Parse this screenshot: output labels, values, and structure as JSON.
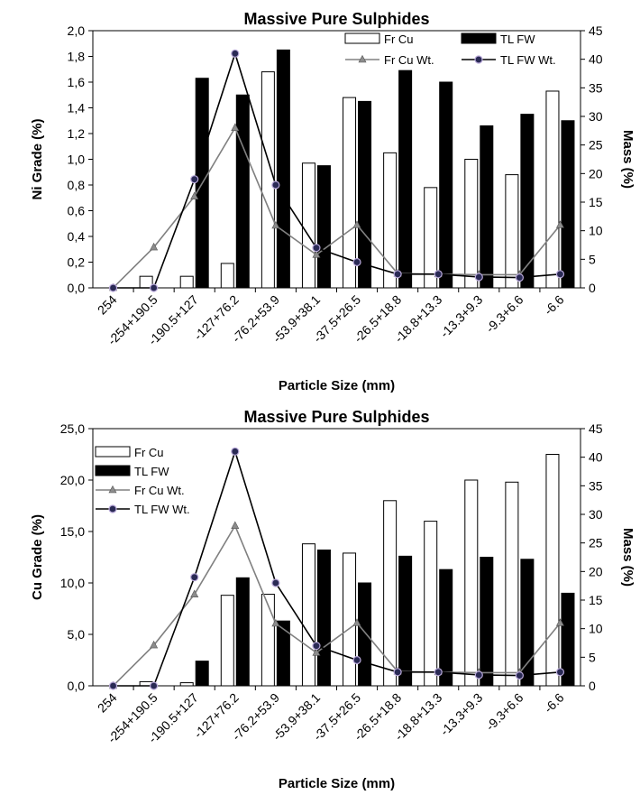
{
  "chart_data": [
    {
      "type": "bar",
      "title": "Massive Pure Sulphides",
      "xlabel": "Particle Size (mm)",
      "ylabel": "Ni Grade (%)",
      "y2label": "Mass (%)",
      "ylim": [
        0,
        2.0
      ],
      "yticks": [
        "0,0",
        "0,2",
        "0,4",
        "0,6",
        "0,8",
        "1,0",
        "1,2",
        "1,4",
        "1,6",
        "1,8",
        "2,0"
      ],
      "y2lim": [
        0,
        45
      ],
      "y2ticks": [
        "0",
        "5",
        "10",
        "15",
        "20",
        "25",
        "30",
        "35",
        "40",
        "45"
      ],
      "legend_position": "top-right",
      "legend_columns": 2,
      "categories": [
        "254",
        "-254+190.5",
        "-190.5+127",
        "-127+76.2",
        "-76.2+53.9",
        "-53.9+38.1",
        "-37.5+26.5",
        "-26.5+18.8",
        "-18.8+13.3",
        "-13.3+9.3",
        "-9.3+6.6",
        "-6.6"
      ],
      "series": [
        {
          "name": "Fr Cu",
          "kind": "bar",
          "axis": "left",
          "fill": "#ffffff",
          "values": [
            0,
            0.09,
            0.09,
            0.19,
            1.68,
            0.97,
            1.48,
            1.05,
            0.78,
            1.0,
            0.88,
            1.53
          ]
        },
        {
          "name": "TL FW",
          "kind": "bar",
          "axis": "left",
          "fill": "#000000",
          "values": [
            0,
            0,
            1.63,
            1.5,
            1.85,
            0.95,
            1.45,
            1.69,
            1.6,
            1.26,
            1.35,
            1.3
          ]
        },
        {
          "name": "Fr Cu Wt.",
          "kind": "line",
          "axis": "right",
          "line_color": "#808080",
          "marker": "triangle",
          "marker_color": "#8c8c8c",
          "values": [
            0,
            7.1,
            16.0,
            28.0,
            10.9,
            5.8,
            11.0,
            2.5,
            2.4,
            2.3,
            2.3,
            11.0
          ]
        },
        {
          "name": "TL FW Wt.",
          "kind": "line",
          "axis": "right",
          "line_color": "#000000",
          "marker": "circle",
          "marker_color": "#2a2a55",
          "values": [
            0,
            0,
            19.0,
            41.0,
            18.0,
            7.0,
            4.5,
            2.4,
            2.4,
            1.9,
            1.8,
            2.4
          ]
        }
      ]
    },
    {
      "type": "bar",
      "title": "Massive Pure Sulphides",
      "xlabel": "Particle Size (mm)",
      "ylabel": "Cu Grade (%)",
      "y2label": "Mass (%)",
      "ylim": [
        0,
        25.0
      ],
      "yticks": [
        "0,0",
        "5,0",
        "10,0",
        "15,0",
        "20,0",
        "25,0"
      ],
      "y2lim": [
        0,
        45
      ],
      "y2ticks": [
        "0",
        "5",
        "10",
        "15",
        "20",
        "25",
        "30",
        "35",
        "40",
        "45"
      ],
      "legend_position": "top-left",
      "legend_columns": 1,
      "categories": [
        "254",
        "-254+190.5",
        "-190.5+127",
        "-127+76.2",
        "-76.2+53.9",
        "-53.9+38.1",
        "-37.5+26.5",
        "-26.5+18.8",
        "-18.8+13.3",
        "-13.3+9.3",
        "-9.3+6.6",
        "-6.6"
      ],
      "series": [
        {
          "name": "Fr Cu",
          "kind": "bar",
          "axis": "left",
          "fill": "#ffffff",
          "values": [
            0,
            0.4,
            0.3,
            8.8,
            8.9,
            13.8,
            12.9,
            18.0,
            16.0,
            20.0,
            19.8,
            22.5
          ]
        },
        {
          "name": "TL FW",
          "kind": "bar",
          "axis": "left",
          "fill": "#000000",
          "values": [
            0,
            0,
            2.4,
            10.5,
            6.3,
            13.2,
            10.0,
            12.6,
            11.3,
            12.5,
            12.3,
            9.0
          ]
        },
        {
          "name": "Fr Cu Wt.",
          "kind": "line",
          "axis": "right",
          "line_color": "#808080",
          "marker": "triangle",
          "marker_color": "#8c8c8c",
          "values": [
            0,
            7.1,
            16.0,
            28.0,
            10.9,
            5.8,
            11.0,
            2.5,
            2.4,
            2.3,
            2.3,
            11.0
          ]
        },
        {
          "name": "TL FW Wt.",
          "kind": "line",
          "axis": "right",
          "line_color": "#000000",
          "marker": "circle",
          "marker_color": "#2a2a55",
          "values": [
            0,
            0,
            19.0,
            41.0,
            18.0,
            7.0,
            4.5,
            2.4,
            2.4,
            1.9,
            1.8,
            2.4
          ]
        }
      ]
    }
  ]
}
